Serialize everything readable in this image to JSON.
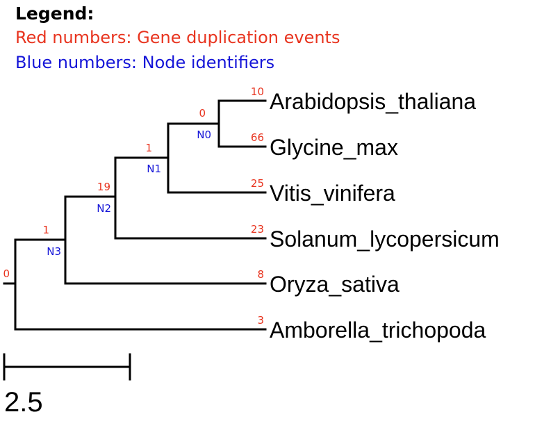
{
  "legend": {
    "title": "Legend:",
    "red_line": "Red numbers: Gene duplication events",
    "blue_line": "Blue numbers: Node identifiers",
    "red_color": "#e8341f",
    "blue_color": "#1515d8"
  },
  "tree": {
    "leaves": [
      {
        "name": "Arabidopsis_thaliana",
        "duplications": "10"
      },
      {
        "name": "Glycine_max",
        "duplications": "66"
      },
      {
        "name": "Vitis_vinifera",
        "duplications": "25"
      },
      {
        "name": "Solanum_lycopersicum",
        "duplications": "23"
      },
      {
        "name": "Oryza_sativa",
        "duplications": "8"
      },
      {
        "name": "Amborella_trichopoda",
        "duplications": "3"
      }
    ],
    "internal_nodes": [
      {
        "id": "N0",
        "duplications": "0"
      },
      {
        "id": "N1",
        "duplications": "1"
      },
      {
        "id": "N2",
        "duplications": "19"
      },
      {
        "id": "N3",
        "duplications": "1"
      }
    ],
    "root": {
      "duplications": "0"
    }
  },
  "scale_bar": {
    "label": "2.5"
  }
}
